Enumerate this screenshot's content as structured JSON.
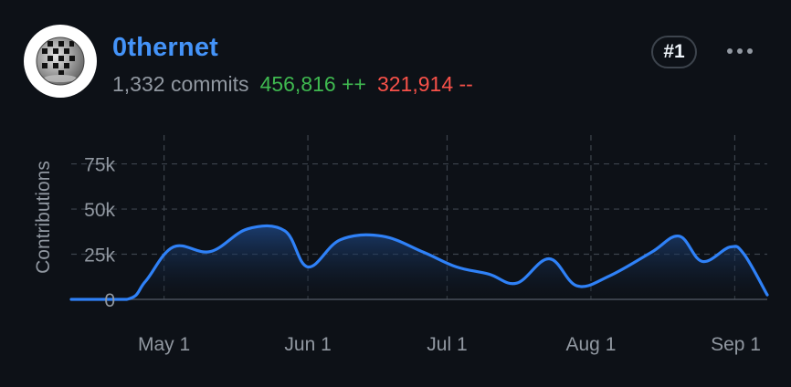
{
  "user": {
    "username": "0thernet",
    "commits_text": "1,332 commits",
    "additions_text": "456,816 ++",
    "deletions_text": "321,914 --",
    "rank_text": "#1",
    "avatar_icon": "disco-ball-icon",
    "more_icon": "kebab-menu-icon"
  },
  "colors": {
    "background": "#0d1117",
    "link": "#4493f8",
    "muted": "#9198a1",
    "additions": "#3fb950",
    "deletions": "#f85149",
    "line": "#2f81f7"
  },
  "chart_data": {
    "type": "area",
    "ylabel": "Contributions",
    "ylim": [
      0,
      95000
    ],
    "xlim": [
      "2024-04-11",
      "2024-09-08"
    ],
    "y_ticks": [
      {
        "value": 0,
        "label": "0"
      },
      {
        "value": 25000,
        "label": "25k"
      },
      {
        "value": 50000,
        "label": "50k"
      },
      {
        "value": 75000,
        "label": "75k"
      }
    ],
    "x_ticks": [
      {
        "date": "2024-05-01",
        "label": "May 1"
      },
      {
        "date": "2024-06-01",
        "label": "Jun 1"
      },
      {
        "date": "2024-07-01",
        "label": "Jul 1"
      },
      {
        "date": "2024-08-01",
        "label": "Aug 1"
      },
      {
        "date": "2024-09-01",
        "label": "Sep 1"
      }
    ],
    "grid": true,
    "series": [
      {
        "points": [
          [
            "2024-04-11",
            0
          ],
          [
            "2024-04-23",
            0
          ],
          [
            "2024-04-27",
            10000
          ],
          [
            "2024-05-03",
            29000
          ],
          [
            "2024-05-11",
            26500
          ],
          [
            "2024-05-19",
            39000
          ],
          [
            "2024-05-27",
            38000
          ],
          [
            "2024-06-01",
            18000
          ],
          [
            "2024-06-08",
            33000
          ],
          [
            "2024-06-17",
            35000
          ],
          [
            "2024-06-26",
            26000
          ],
          [
            "2024-07-03",
            18000
          ],
          [
            "2024-07-10",
            14000
          ],
          [
            "2024-07-16",
            9000
          ],
          [
            "2024-07-23",
            22500
          ],
          [
            "2024-07-29",
            7500
          ],
          [
            "2024-08-05",
            13000
          ],
          [
            "2024-08-14",
            26000
          ],
          [
            "2024-08-20",
            35000
          ],
          [
            "2024-08-25",
            21000
          ],
          [
            "2024-08-31",
            29000
          ],
          [
            "2024-09-03",
            25000
          ],
          [
            "2024-09-08",
            2500
          ]
        ]
      }
    ]
  }
}
